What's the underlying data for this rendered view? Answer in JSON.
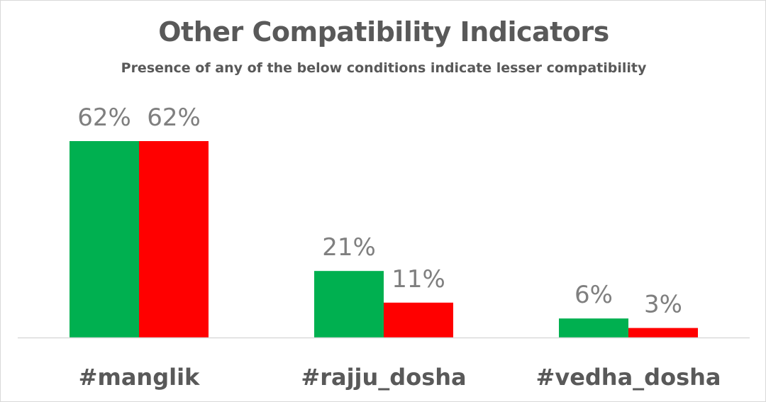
{
  "chart_data": {
    "type": "bar",
    "title": "Other Compatibility Indicators",
    "subtitle": "Presence of any of the below conditions indicate lesser compatibility",
    "categories": [
      "#manglik",
      "#rajju_dosha",
      "#vedha_dosha"
    ],
    "series": [
      {
        "values": [
          62,
          21,
          6
        ],
        "labels": [
          "62%",
          "21%",
          "6%"
        ],
        "color": "#00b050"
      },
      {
        "values": [
          62,
          11,
          3
        ],
        "labels": [
          "62%",
          "11%",
          "3%"
        ],
        "color": "#ff0000"
      }
    ],
    "ylim": [
      0,
      70
    ],
    "grid": false,
    "legend": "none",
    "axis_color": "#d9d9d9"
  }
}
